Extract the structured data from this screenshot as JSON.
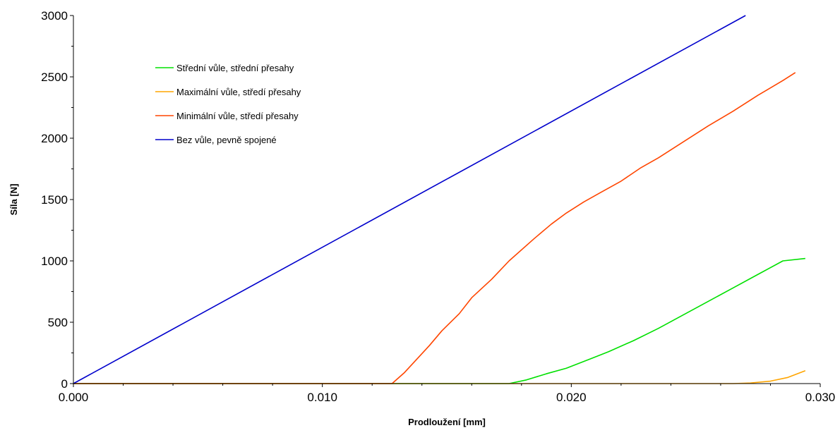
{
  "chart_data": {
    "type": "line",
    "xlabel": "Prodloužení [mm]",
    "ylabel": "Síla [N]",
    "xlim": [
      0,
      0.03
    ],
    "ylim": [
      0,
      3000
    ],
    "x_ticks": [
      "0.000",
      "0.010",
      "0.020",
      "0.030"
    ],
    "y_ticks": [
      "0",
      "500",
      "1000",
      "1500",
      "2000",
      "2500",
      "3000"
    ],
    "grid": false,
    "legend_position": "top-left",
    "series": [
      {
        "name": "Střední vůle, střední přesahy",
        "color": "#00e000",
        "points": [
          [
            0,
            0
          ],
          [
            0.0175,
            0
          ],
          [
            0.0182,
            30
          ],
          [
            0.019,
            80
          ],
          [
            0.0198,
            125
          ],
          [
            0.0205,
            180
          ],
          [
            0.0215,
            260
          ],
          [
            0.0225,
            350
          ],
          [
            0.0235,
            450
          ],
          [
            0.0245,
            560
          ],
          [
            0.0255,
            670
          ],
          [
            0.0265,
            780
          ],
          [
            0.0275,
            890
          ],
          [
            0.0285,
            1000
          ],
          [
            0.0294,
            1020
          ]
        ]
      },
      {
        "name": "Maximální vůle, středí přesahy",
        "color": "#ffa500",
        "points": [
          [
            0,
            0
          ],
          [
            0.0265,
            0
          ],
          [
            0.0272,
            5
          ],
          [
            0.028,
            20
          ],
          [
            0.0287,
            50
          ],
          [
            0.0294,
            105
          ]
        ]
      },
      {
        "name": "Minimální vůle, středí přesahy",
        "color": "#ff4500",
        "points": [
          [
            0,
            0
          ],
          [
            0.0128,
            0
          ],
          [
            0.0133,
            90
          ],
          [
            0.0138,
            200
          ],
          [
            0.0143,
            310
          ],
          [
            0.0148,
            430
          ],
          [
            0.0155,
            570
          ],
          [
            0.016,
            700
          ],
          [
            0.0168,
            850
          ],
          [
            0.0175,
            1000
          ],
          [
            0.0185,
            1180
          ],
          [
            0.0192,
            1300
          ],
          [
            0.0198,
            1390
          ],
          [
            0.0205,
            1480
          ],
          [
            0.0212,
            1560
          ],
          [
            0.022,
            1650
          ],
          [
            0.0228,
            1760
          ],
          [
            0.0235,
            1840
          ],
          [
            0.0245,
            1970
          ],
          [
            0.0255,
            2100
          ],
          [
            0.0265,
            2220
          ],
          [
            0.0275,
            2350
          ],
          [
            0.0285,
            2470
          ],
          [
            0.029,
            2535
          ]
        ]
      },
      {
        "name": "Bez vůle, pevně spojené",
        "color": "#0000cc",
        "points": [
          [
            0,
            0
          ],
          [
            0.027,
            3000
          ]
        ]
      }
    ]
  }
}
